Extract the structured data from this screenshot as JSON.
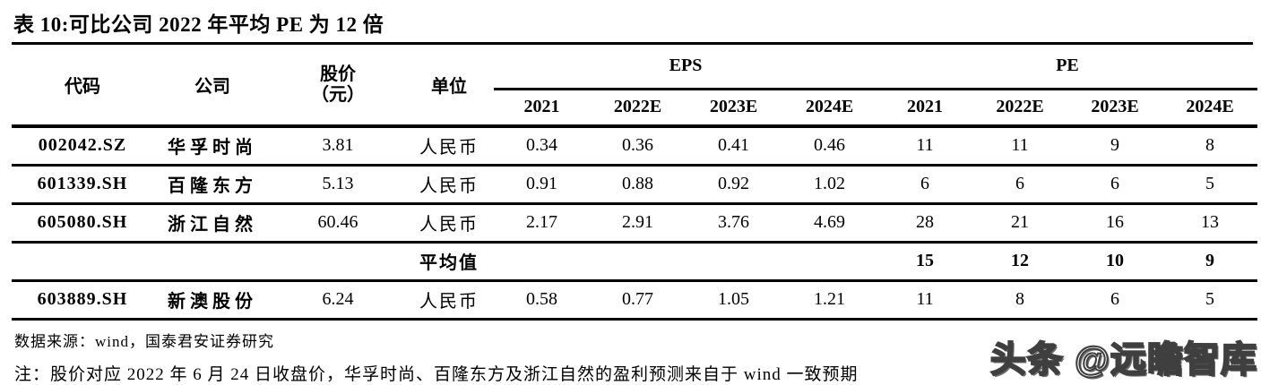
{
  "title": "表 10:可比公司 2022 年平均 PE 为 12 倍",
  "table": {
    "col_headers": {
      "code": "代码",
      "company": "公司",
      "price_line1": "股价",
      "price_line2": "（元）",
      "unit": "单位",
      "eps_group": "EPS",
      "pe_group": "PE",
      "years": [
        "2021",
        "2022E",
        "2023E",
        "2024E"
      ]
    },
    "rows": [
      {
        "code": "002042.SZ",
        "company": "华孚时尚",
        "price": "3.81",
        "unit": "人民币",
        "eps": [
          "0.34",
          "0.36",
          "0.41",
          "0.46"
        ],
        "pe": [
          "11",
          "11",
          "9",
          "8"
        ],
        "is_average": false
      },
      {
        "code": "601339.SH",
        "company": "百隆东方",
        "price": "5.13",
        "unit": "人民币",
        "eps": [
          "0.91",
          "0.88",
          "0.92",
          "1.02"
        ],
        "pe": [
          "6",
          "6",
          "6",
          "5"
        ],
        "is_average": false
      },
      {
        "code": "605080.SH",
        "company": "浙江自然",
        "price": "60.46",
        "unit": "人民币",
        "eps": [
          "2.17",
          "2.91",
          "3.76",
          "4.69"
        ],
        "pe": [
          "28",
          "21",
          "16",
          "13"
        ],
        "is_average": false
      },
      {
        "code": "",
        "company": "",
        "price": "",
        "unit": "平均值",
        "eps": [
          "",
          "",
          "",
          ""
        ],
        "pe": [
          "15",
          "12",
          "10",
          "9"
        ],
        "is_average": true
      },
      {
        "code": "603889.SH",
        "company": "新澳股份",
        "price": "6.24",
        "unit": "人民币",
        "eps": [
          "0.58",
          "0.77",
          "1.05",
          "1.21"
        ],
        "pe": [
          "11",
          "8",
          "6",
          "5"
        ],
        "is_average": false
      }
    ]
  },
  "footer": {
    "source": "数据来源：wind，国泰君安证券研究",
    "note": "注：股价对应 2022 年 6 月 24 日收盘价，华孚时尚、百隆东方及浙江自然的盈利预测来自于 wind 一致预期"
  },
  "watermark": "头条 @远瞻智库",
  "colors": {
    "background": "#ffffff",
    "text": "#000000",
    "rule": "#000000",
    "watermark_fill": "#ffffff",
    "watermark_outline": "#3f3f3f"
  }
}
